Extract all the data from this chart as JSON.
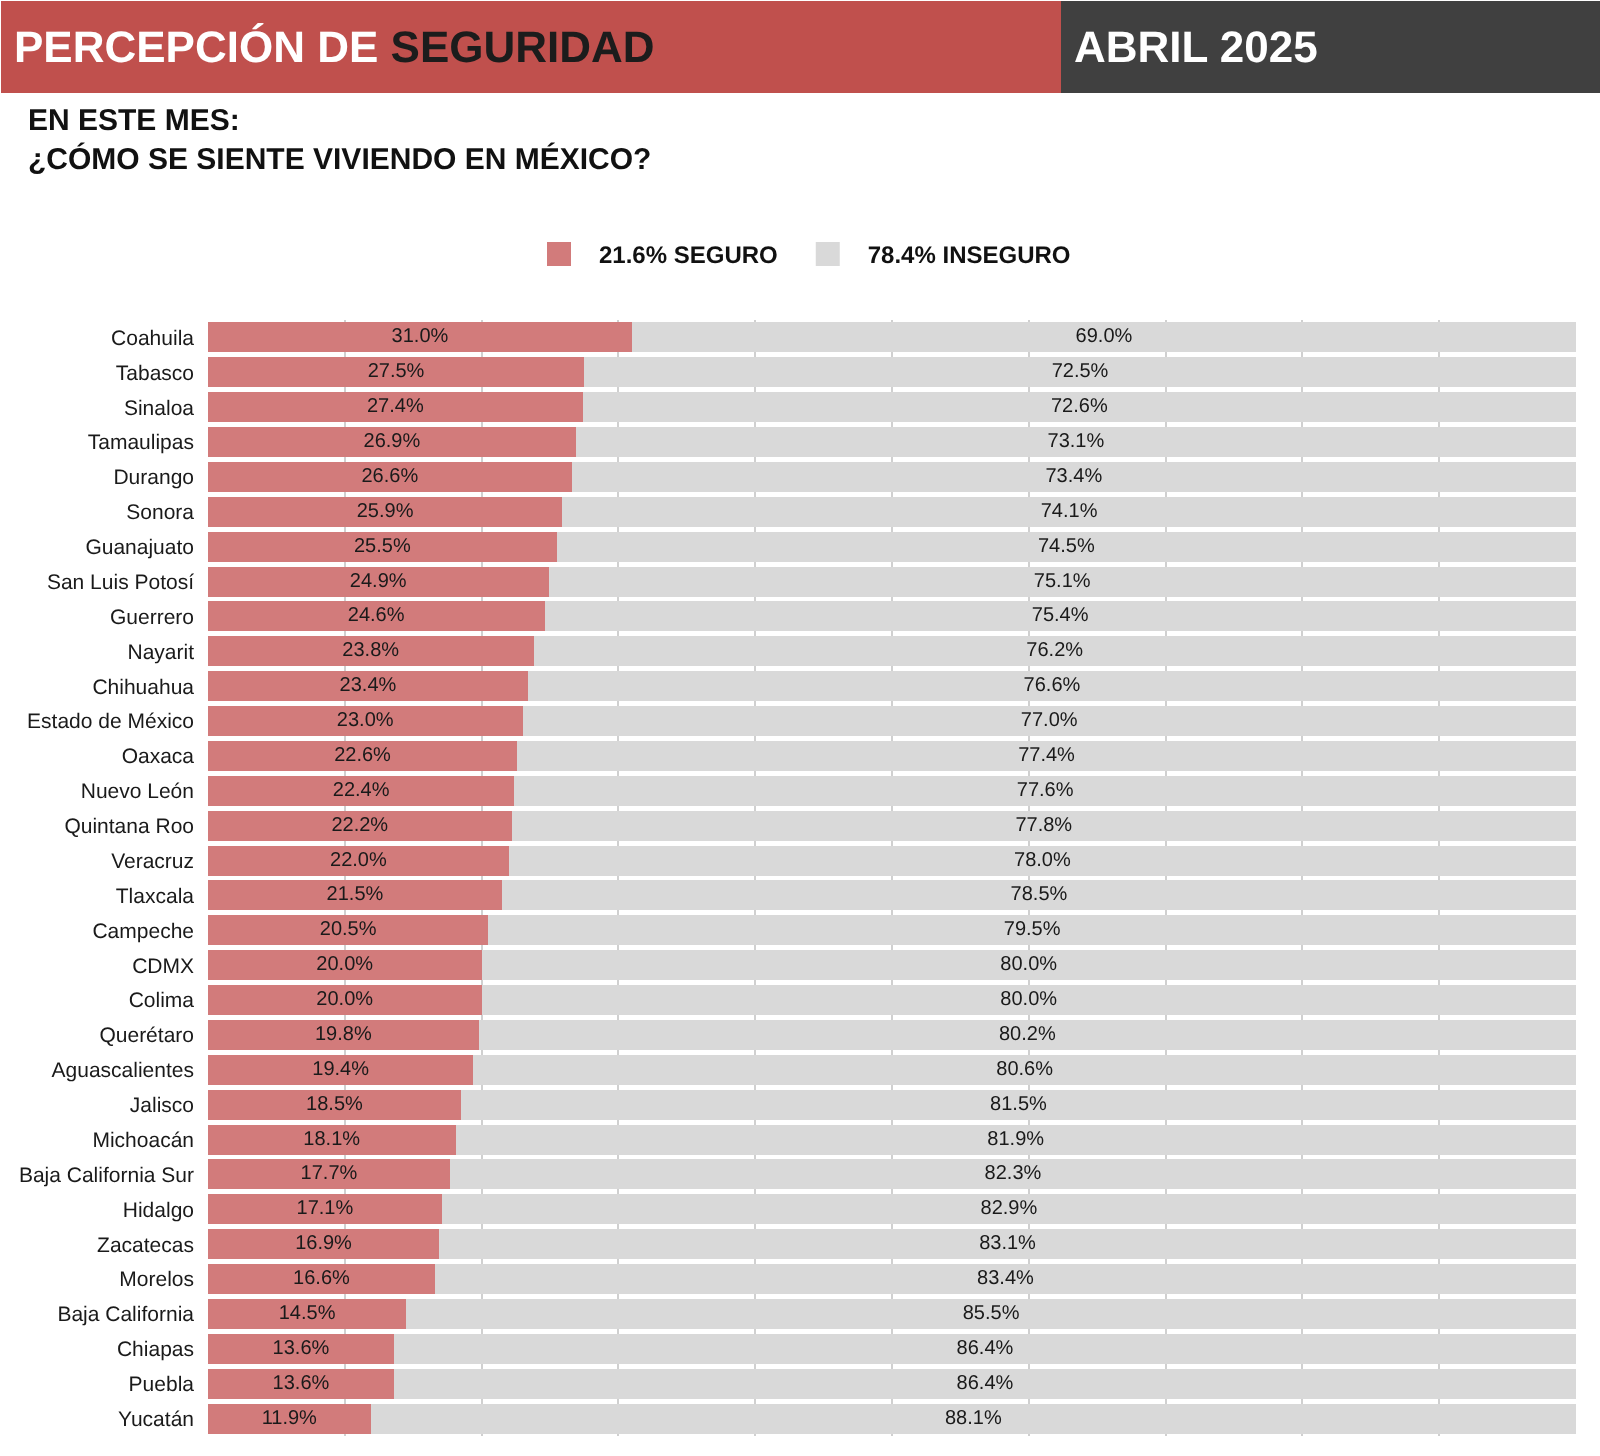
{
  "chart_data": {
    "type": "bar",
    "orientation": "horizontal",
    "stacked": true,
    "title": "PERCEPCIÓN DE SEGURIDAD",
    "subtitle": "EN ESTE MES:\n¿CÓMO SE SIENTE VIVIENDO EN MÉXICO?",
    "annotations": [
      "ABRIL 2025"
    ],
    "categories": [
      "Coahuila",
      "Tabasco",
      "Sinaloa",
      "Tamaulipas",
      "Durango",
      "Sonora",
      "Guanajuato",
      "San Luis Potosí",
      "Guerrero",
      "Nayarit",
      "Chihuahua",
      "Estado de México",
      "Oaxaca",
      "Nuevo León",
      "Quintana Roo",
      "Veracruz",
      "Tlaxcala",
      "Campeche",
      "CDMX",
      "Colima",
      "Querétaro",
      "Aguascalientes",
      "Jalisco",
      "Michoacán",
      "Baja California Sur",
      "Hidalgo",
      "Zacatecas",
      "Morelos",
      "Baja California",
      "Chiapas",
      "Puebla",
      "Yucatán"
    ],
    "series": [
      {
        "name": "21.6% SEGURO",
        "color": "#d27b7b",
        "values": [
          31.0,
          27.5,
          27.4,
          26.9,
          26.6,
          25.9,
          25.5,
          24.9,
          24.6,
          23.8,
          23.4,
          23.0,
          22.6,
          22.4,
          22.2,
          22.0,
          21.5,
          20.5,
          20.0,
          20.0,
          19.8,
          19.4,
          18.5,
          18.1,
          17.7,
          17.1,
          16.9,
          16.6,
          14.5,
          13.6,
          13.6,
          11.9
        ],
        "value_labels": [
          "31.0%",
          "27.5%",
          "27.4%",
          "26.9%",
          "26.6%",
          "25.9%",
          "25.5%",
          "24.9%",
          "24.6%",
          "23.8%",
          "23.4%",
          "23.0%",
          "22.6%",
          "22.4%",
          "22.2%",
          "22.0%",
          "21.5%",
          "20.5%",
          "20.0%",
          "20.0%",
          "19.8%",
          "19.4%",
          "18.5%",
          "18.1%",
          "17.7%",
          "17.1%",
          "16.9%",
          "16.6%",
          "14.5%",
          "13.6%",
          "13.6%",
          "11.9%"
        ]
      },
      {
        "name": "78.4% INSEGURO",
        "color": "#d9d9d9",
        "values": [
          69.0,
          72.5,
          72.6,
          73.1,
          73.4,
          74.1,
          74.5,
          75.1,
          75.4,
          76.2,
          76.6,
          77.0,
          77.4,
          77.6,
          77.8,
          78.0,
          78.5,
          79.5,
          80.0,
          80.0,
          80.2,
          80.6,
          81.5,
          81.9,
          82.3,
          82.9,
          83.1,
          83.4,
          85.5,
          86.4,
          86.4,
          88.1
        ],
        "value_labels": [
          "69.0%",
          "72.5%",
          "72.6%",
          "73.1%",
          "73.4%",
          "74.1%",
          "74.5%",
          "75.1%",
          "75.4%",
          "76.2%",
          "76.6%",
          "77.0%",
          "77.4%",
          "77.6%",
          "77.8%",
          "78.0%",
          "78.5%",
          "79.5%",
          "80.0%",
          "80.0%",
          "80.2%",
          "80.6%",
          "81.5%",
          "81.9%",
          "82.3%",
          "82.9%",
          "83.1%",
          "83.4%",
          "85.5%",
          "86.4%",
          "86.4%",
          "88.1%"
        ]
      }
    ],
    "xlim": [
      0,
      100
    ],
    "xticks": [
      {
        "value": 10,
        "label": null
      },
      {
        "value": 20,
        "label": null
      },
      {
        "value": 30,
        "label": null
      },
      {
        "value": 40,
        "label": null
      },
      {
        "value": 50,
        "label": null
      },
      {
        "value": 60,
        "label": null
      },
      {
        "value": 70,
        "label": null
      },
      {
        "value": 80,
        "label": null
      },
      {
        "value": 90,
        "label": null
      }
    ],
    "grid": "x",
    "legend": "top",
    "tick_labels": "y"
  }
}
